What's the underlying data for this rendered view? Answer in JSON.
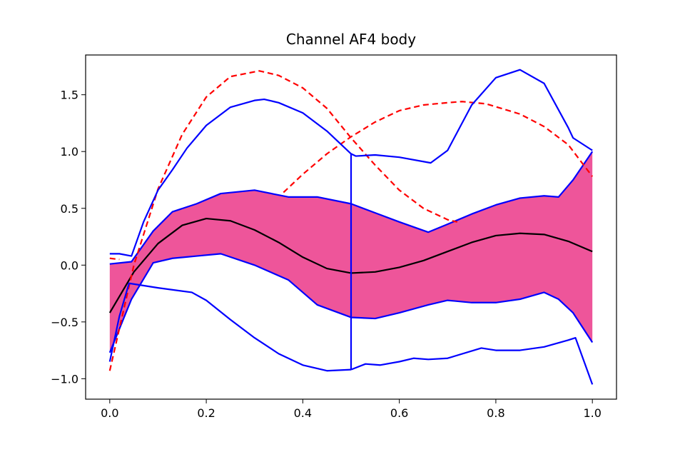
{
  "chart_data": {
    "type": "line",
    "title": "Channel AF4 body",
    "xlabel": "",
    "ylabel": "",
    "xlim": [
      -0.05,
      1.05
    ],
    "ylim": [
      -1.18,
      1.85
    ],
    "grid": false,
    "legend": "none",
    "x_ticks": [
      0.0,
      0.2,
      0.4,
      0.6,
      0.8,
      1.0
    ],
    "x_tick_labels": [
      "0.0",
      "0.2",
      "0.4",
      "0.6",
      "0.8",
      "1.0"
    ],
    "y_ticks": [
      -1.0,
      -0.5,
      0.0,
      0.5,
      1.0,
      1.5
    ],
    "y_tick_labels": [
      "−1.0",
      "−0.5",
      "0.0",
      "0.5",
      "1.0",
      "1.5"
    ],
    "colors": {
      "band_fill": "#ee559a",
      "band_edge": "#0000ff",
      "outer": "#0000ff",
      "dashed": "#ff0000",
      "mean": "#000000"
    },
    "band": {
      "x": [
        0.0,
        0.045,
        0.09,
        0.13,
        0.18,
        0.23,
        0.3,
        0.37,
        0.43,
        0.5,
        0.55,
        0.6,
        0.66,
        0.7,
        0.75,
        0.8,
        0.85,
        0.9,
        0.93,
        0.96,
        1.0
      ],
      "upper": [
        0.01,
        0.03,
        0.3,
        0.47,
        0.54,
        0.63,
        0.66,
        0.6,
        0.6,
        0.54,
        0.46,
        0.38,
        0.29,
        0.36,
        0.45,
        0.53,
        0.59,
        0.61,
        0.6,
        0.75,
        1.0
      ],
      "lower": [
        -0.77,
        -0.3,
        0.02,
        0.06,
        0.08,
        0.1,
        0.0,
        -0.13,
        -0.35,
        -0.46,
        -0.47,
        -0.42,
        -0.35,
        -0.31,
        -0.33,
        -0.33,
        -0.3,
        -0.24,
        -0.3,
        -0.42,
        -0.68
      ]
    },
    "series": [
      {
        "style": "solid",
        "color": "#000000",
        "x": [
          0.0,
          0.05,
          0.1,
          0.15,
          0.2,
          0.25,
          0.3,
          0.35,
          0.4,
          0.45,
          0.5,
          0.55,
          0.6,
          0.65,
          0.7,
          0.75,
          0.8,
          0.85,
          0.9,
          0.95,
          1.0
        ],
        "y": [
          -0.42,
          -0.06,
          0.19,
          0.35,
          0.41,
          0.39,
          0.31,
          0.2,
          0.07,
          -0.03,
          -0.07,
          -0.06,
          -0.02,
          0.04,
          0.12,
          0.2,
          0.26,
          0.28,
          0.27,
          0.21,
          0.12
        ]
      },
      {
        "style": "dashed",
        "color": "#ff0000",
        "x": [
          0.0,
          0.05,
          0.1,
          0.15,
          0.2,
          0.25,
          0.31,
          0.35,
          0.4,
          0.45,
          0.5,
          0.55,
          0.6,
          0.65,
          0.7,
          0.72
        ],
        "y": [
          -0.93,
          0.0,
          0.67,
          1.15,
          1.48,
          1.66,
          1.71,
          1.67,
          1.56,
          1.38,
          1.12,
          0.88,
          0.66,
          0.5,
          0.4,
          0.38
        ]
      },
      {
        "style": "dashed",
        "color": "#ff0000",
        "x": [
          0.36,
          0.4,
          0.45,
          0.5,
          0.55,
          0.6,
          0.65,
          0.7,
          0.73,
          0.78,
          0.85,
          0.9,
          0.95,
          1.0
        ],
        "y": [
          0.64,
          0.8,
          0.98,
          1.13,
          1.26,
          1.36,
          1.41,
          1.43,
          1.44,
          1.42,
          1.33,
          1.22,
          1.06,
          0.78
        ]
      },
      {
        "style": "dashed",
        "color": "#ff0000",
        "x": [
          0.0,
          0.02
        ],
        "y": [
          0.06,
          0.05
        ]
      },
      {
        "style": "solid",
        "color": "#0000ff",
        "x": [
          0.0,
          0.02,
          0.045,
          0.07,
          0.1,
          0.13,
          0.16,
          0.2,
          0.25,
          0.3,
          0.32,
          0.35,
          0.4,
          0.45,
          0.5,
          0.5
        ],
        "y": [
          0.1,
          0.1,
          0.08,
          0.38,
          0.66,
          0.84,
          1.03,
          1.23,
          1.39,
          1.45,
          1.46,
          1.43,
          1.34,
          1.18,
          0.98,
          -0.92
        ]
      },
      {
        "style": "solid",
        "color": "#0000ff",
        "x": [
          0.5,
          0.51,
          0.55,
          0.6,
          0.665,
          0.7,
          0.75,
          0.8,
          0.85,
          0.9,
          0.95,
          0.96,
          1.0
        ],
        "y": [
          0.98,
          0.96,
          0.97,
          0.95,
          0.9,
          1.01,
          1.41,
          1.65,
          1.72,
          1.6,
          1.21,
          1.12,
          1.01
        ]
      },
      {
        "style": "solid",
        "color": "#0000ff",
        "x": [
          0.5,
          0.53,
          0.56,
          0.6,
          0.63,
          0.66,
          0.7,
          0.77,
          0.8,
          0.85,
          0.9,
          0.95,
          0.965,
          1.0
        ],
        "y": [
          -0.92,
          -0.87,
          -0.88,
          -0.85,
          -0.82,
          -0.83,
          -0.82,
          -0.73,
          -0.75,
          -0.75,
          -0.72,
          -0.66,
          -0.64,
          -1.05
        ]
      },
      {
        "style": "solid",
        "color": "#0000ff",
        "x": [
          0.0,
          0.02,
          0.04,
          0.1,
          0.17,
          0.2,
          0.25,
          0.3,
          0.35,
          0.4,
          0.45,
          0.5
        ],
        "y": [
          -0.85,
          -0.45,
          -0.16,
          -0.2,
          -0.24,
          -0.31,
          -0.48,
          -0.64,
          -0.78,
          -0.88,
          -0.93,
          -0.92
        ]
      }
    ]
  }
}
